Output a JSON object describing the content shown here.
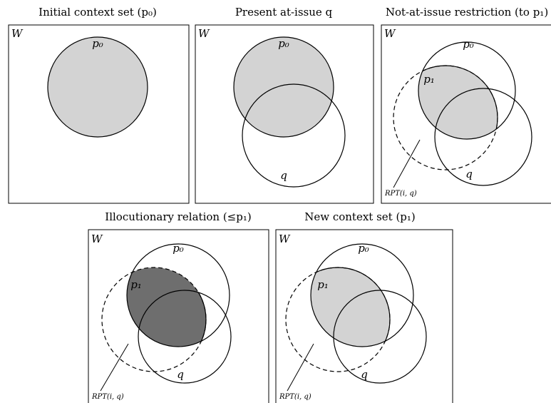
{
  "panels": [
    {
      "title": "Initial context set (p₀)",
      "world_label": "W",
      "p0_label": "p₀"
    },
    {
      "title": "Present at-issue q",
      "world_label": "W",
      "p0_label": "p₀",
      "q_label": "q"
    },
    {
      "title": "Not-at-issue restriction (to p₁)",
      "world_label": "W",
      "p0_label": "p₀",
      "p1_label": "p₁",
      "q_label": "q",
      "rpt_label": "RPT(i, q)"
    },
    {
      "title": "Illocutionary relation (≤p₁)",
      "world_label": "W",
      "p0_label": "p₀",
      "p1_label": "p₁",
      "q_label": "q",
      "rpt_label": "RPT(i, q)"
    },
    {
      "title": "New context set (p₁)",
      "world_label": "W",
      "p0_label": "p₀",
      "p1_label": "p₁",
      "q_label": "q",
      "rpt_label": "RPT(i, q)"
    }
  ],
  "colors": {
    "light_fill": "#d3d3d3",
    "dark_fill": "#6e6e6e",
    "line": "#000000"
  }
}
